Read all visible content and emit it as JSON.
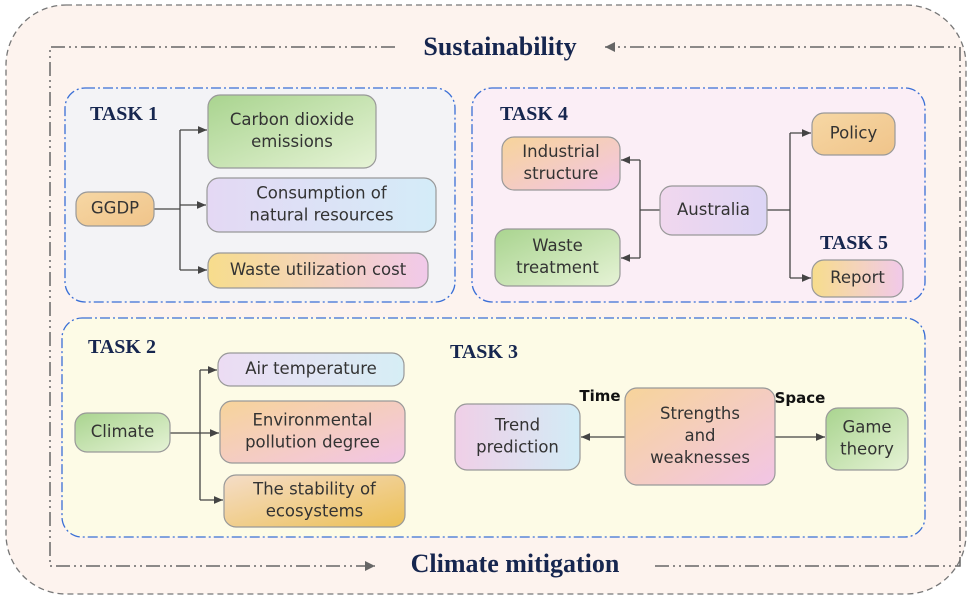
{
  "title": "Sustainability",
  "footer": "Climate mitigation",
  "task_labels": [
    "TASK 1",
    "TASK 4",
    "TASK 5",
    "TASK 2",
    "TASK 3"
  ],
  "edge_labels": [
    "Time",
    "Space"
  ],
  "nodes": [
    {
      "lines": [
        "GGDP"
      ]
    },
    {
      "lines": [
        "Carbon dioxide",
        "emissions"
      ]
    },
    {
      "lines": [
        "Consumption of",
        "natural resources"
      ]
    },
    {
      "lines": [
        "Waste utilization cost"
      ]
    },
    {
      "lines": [
        "Industrial",
        "structure"
      ]
    },
    {
      "lines": [
        "Waste",
        "treatment"
      ]
    },
    {
      "lines": [
        "Australia"
      ]
    },
    {
      "lines": [
        "Policy"
      ]
    },
    {
      "lines": [
        "Report"
      ]
    },
    {
      "lines": [
        "Climate"
      ]
    },
    {
      "lines": [
        "Air temperature"
      ]
    },
    {
      "lines": [
        "Environmental",
        "pollution degree"
      ]
    },
    {
      "lines": [
        "The stability of",
        "ecosystems"
      ]
    },
    {
      "lines": [
        "Trend",
        "prediction"
      ]
    },
    {
      "lines": [
        "Strengths",
        "and",
        "weaknesses"
      ]
    },
    {
      "lines": [
        "Game",
        "theory"
      ]
    }
  ]
}
